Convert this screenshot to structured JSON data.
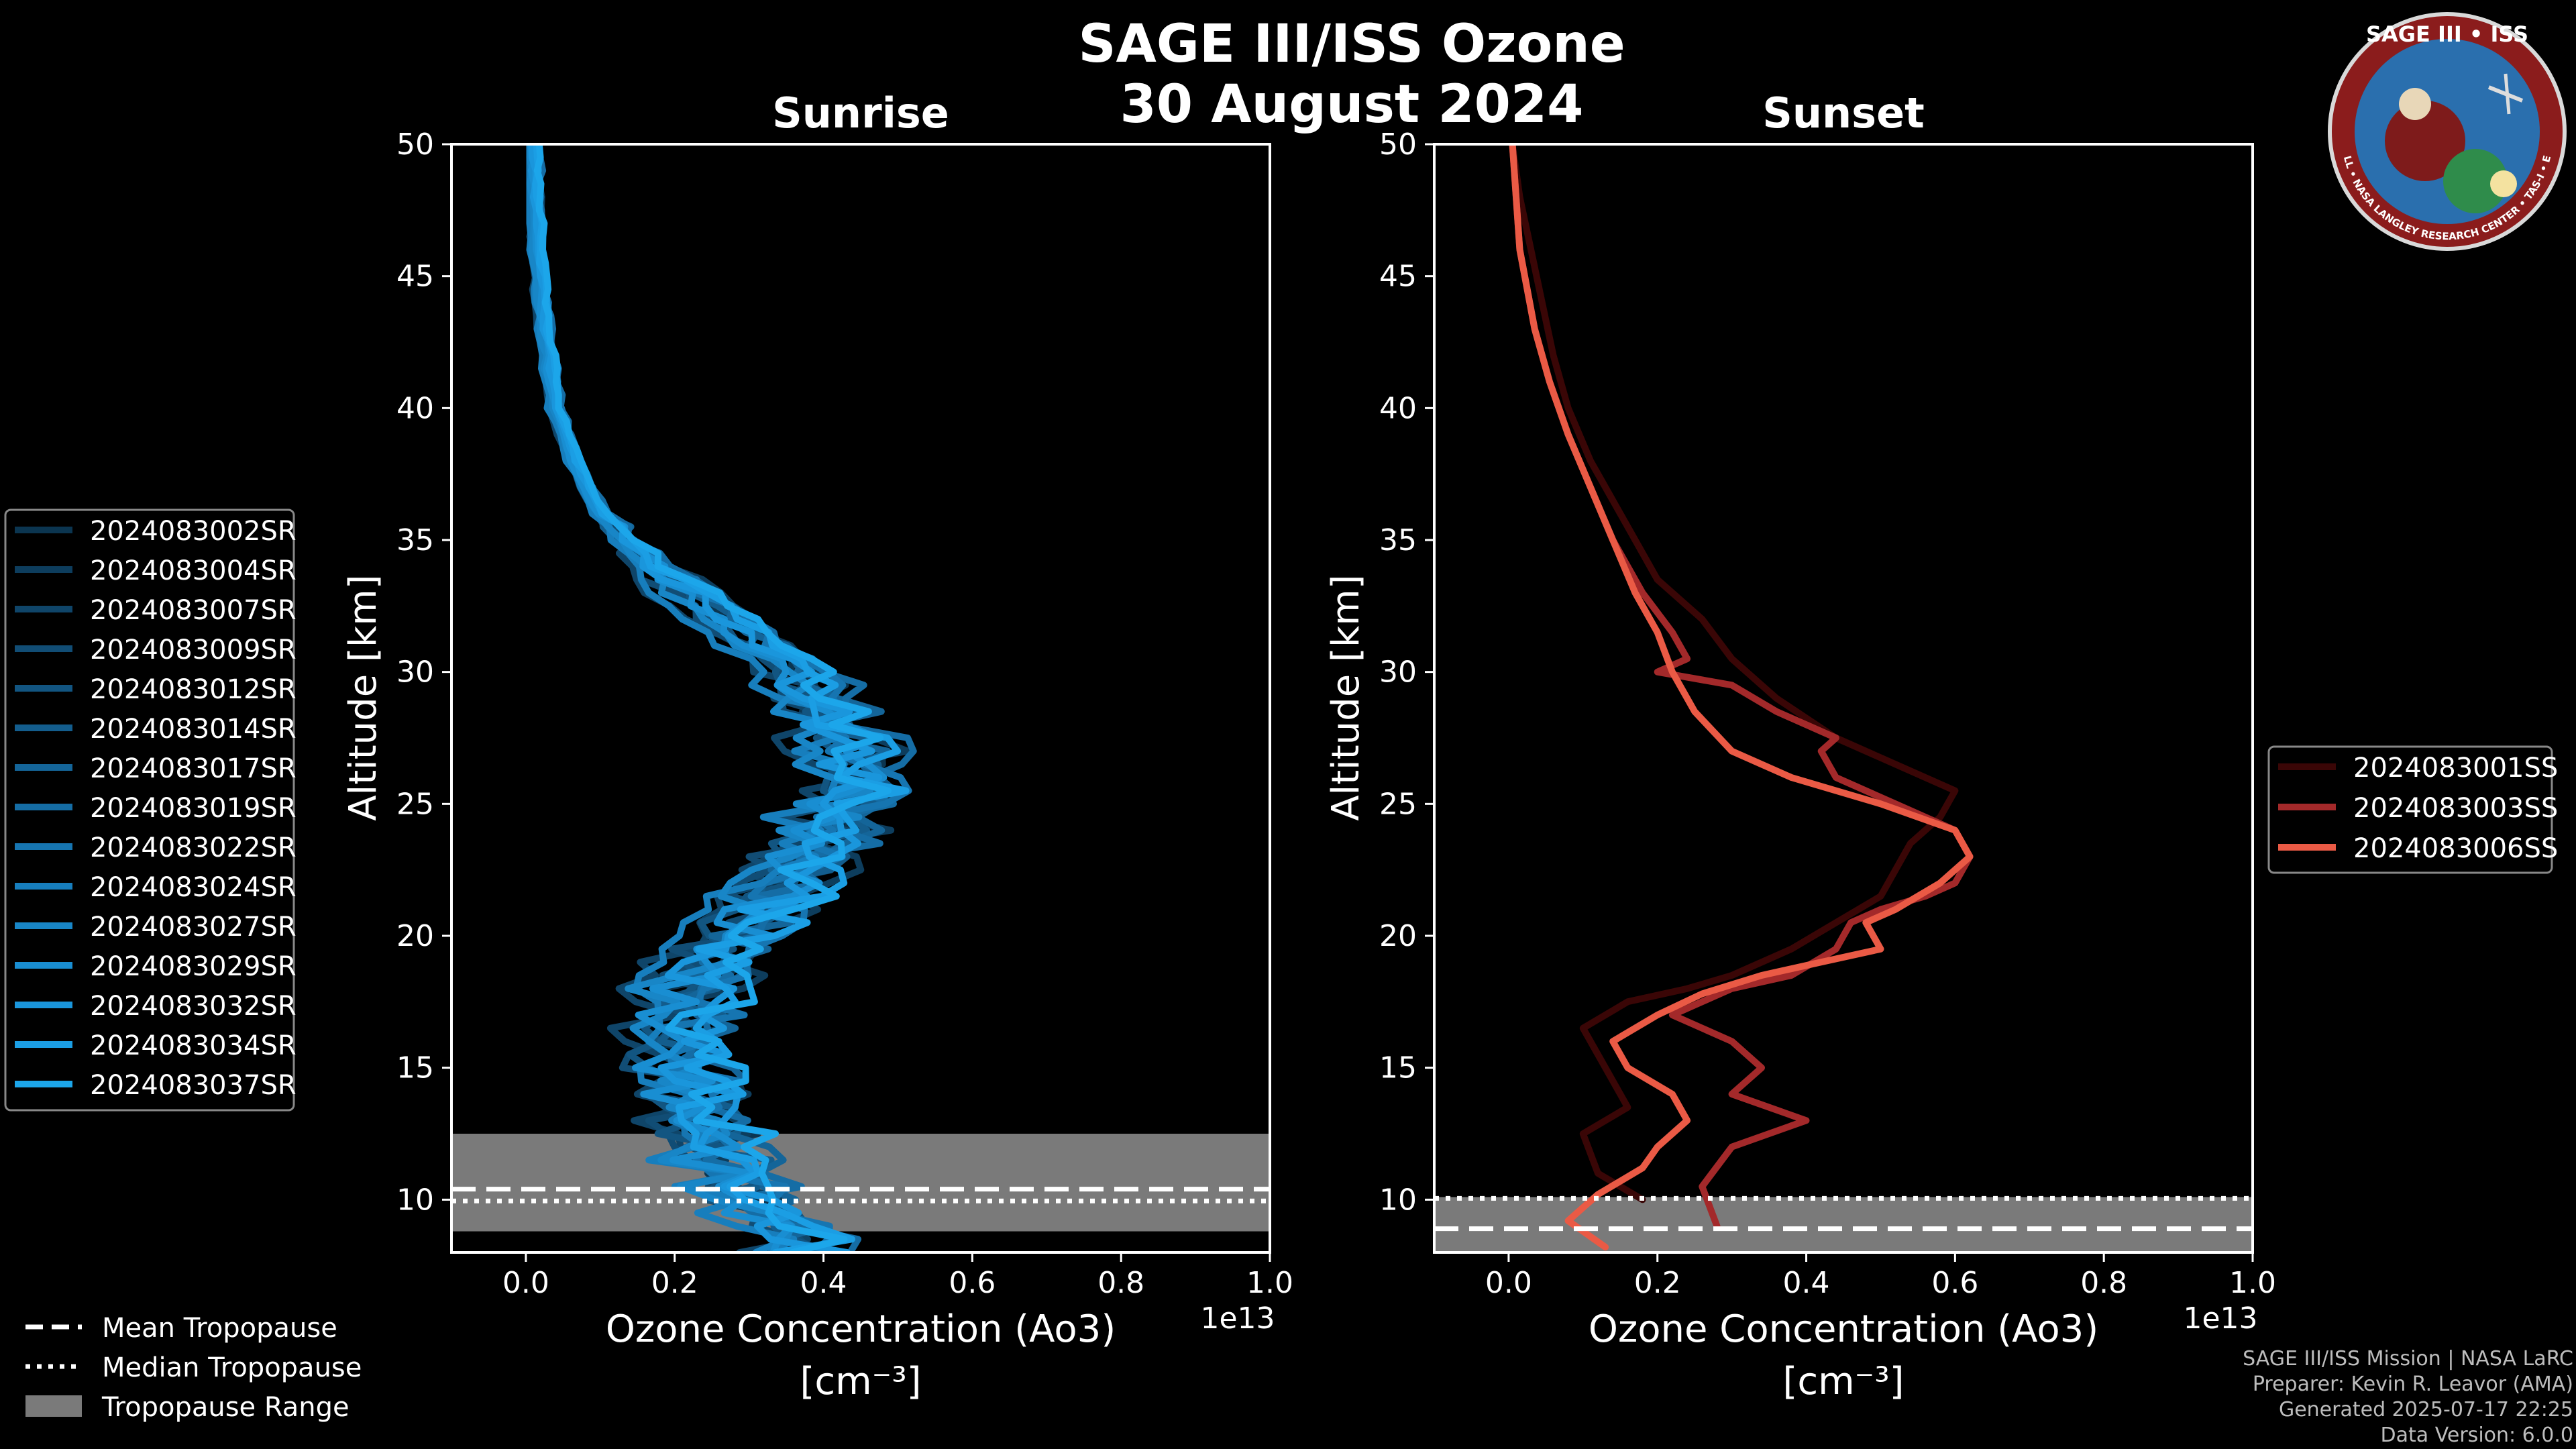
{
  "title": "SAGE III/ISS Ozone",
  "date": "30 August 2024",
  "logo": {
    "text": "SAGE III • ISS",
    "ring_text": "BALL • NASA LANGLEY RESEARCH CENTER • TAS-I • ESA",
    "colors": {
      "ring": "#8b1c1c",
      "inner": "#2a6fae"
    }
  },
  "chart_data": [
    {
      "type": "line",
      "title": "Sunrise",
      "xlabel": "Ozone Concentration (Ao3)",
      "xunit": "[cm⁻³]",
      "xscale": "1e13",
      "ylabel": "Altitude [km]",
      "xlim": [
        -0.1,
        1.0
      ],
      "ylim": [
        8,
        50
      ],
      "xticks": [
        "0.0",
        "0.2",
        "0.4",
        "0.6",
        "0.8",
        "1.0"
      ],
      "yticks": [
        "10",
        "15",
        "20",
        "25",
        "30",
        "35",
        "40",
        "45",
        "50"
      ],
      "tropopause": {
        "mean": 10.4,
        "median": 9.95,
        "range": [
          8.8,
          12.5
        ]
      },
      "legend_position": "left",
      "series": [
        {
          "name": "2024083002SR",
          "color": "#0b3550",
          "seed": 1
        },
        {
          "name": "2024083004SR",
          "color": "#0d3d5d",
          "seed": 2
        },
        {
          "name": "2024083007SR",
          "color": "#0f4569",
          "seed": 3
        },
        {
          "name": "2024083009SR",
          "color": "#114d75",
          "seed": 4
        },
        {
          "name": "2024083012SR",
          "color": "#125581",
          "seed": 5
        },
        {
          "name": "2024083014SR",
          "color": "#135d8d",
          "seed": 6
        },
        {
          "name": "2024083017SR",
          "color": "#146599",
          "seed": 7
        },
        {
          "name": "2024083019SR",
          "color": "#156da5",
          "seed": 8
        },
        {
          "name": "2024083022SR",
          "color": "#1675b1",
          "seed": 9
        },
        {
          "name": "2024083024SR",
          "color": "#177ebd",
          "seed": 10
        },
        {
          "name": "2024083027SR",
          "color": "#1886c7",
          "seed": 11
        },
        {
          "name": "2024083029SR",
          "color": "#198ed2",
          "seed": 12
        },
        {
          "name": "2024083032SR",
          "color": "#1a96dc",
          "seed": 13
        },
        {
          "name": "2024083034SR",
          "color": "#1b9ee4",
          "seed": 14
        },
        {
          "name": "2024083037SR",
          "color": "#1ca6ea",
          "seed": 15
        }
      ],
      "profile_x": [
        0.37,
        0.3,
        0.25,
        0.22,
        0.2,
        0.22,
        0.28,
        0.35,
        0.41,
        0.44,
        0.42,
        0.36,
        0.26,
        0.17,
        0.1,
        0.065,
        0.04,
        0.025,
        0.015,
        0.01
      ],
      "profile_alt": [
        8.5,
        10,
        12,
        14,
        16,
        18,
        20,
        22,
        24,
        26,
        28,
        30,
        32,
        34,
        36,
        38,
        40,
        43,
        46,
        50
      ]
    },
    {
      "type": "line",
      "title": "Sunset",
      "xlabel": "Ozone Concentration (Ao3)",
      "xunit": "[cm⁻³]",
      "xscale": "1e13",
      "ylabel": "Altitude [km]",
      "xlim": [
        -0.1,
        1.0
      ],
      "ylim": [
        8,
        50
      ],
      "xticks": [
        "0.0",
        "0.2",
        "0.4",
        "0.6",
        "0.8",
        "1.0"
      ],
      "yticks": [
        "10",
        "15",
        "20",
        "25",
        "30",
        "35",
        "40",
        "45",
        "50"
      ],
      "tropopause": {
        "mean": 8.9,
        "median": 10.05,
        "range": [
          8.0,
          10.1
        ]
      },
      "legend_position": "right",
      "series": [
        {
          "name": "2024083001SS",
          "color": "#3a0606",
          "x": [
            0.18,
            0.12,
            0.1,
            0.16,
            0.14,
            0.12,
            0.1,
            0.16,
            0.24,
            0.3,
            0.38,
            0.44,
            0.5,
            0.52,
            0.54,
            0.58,
            0.6,
            0.52,
            0.44,
            0.36,
            0.3,
            0.26,
            0.2,
            0.17,
            0.14,
            0.11,
            0.08,
            0.06,
            0.045,
            0.03,
            0.015,
            0.005
          ],
          "alt": [
            10,
            11,
            12.5,
            13.5,
            14.5,
            15.5,
            16.5,
            17.5,
            18,
            18.5,
            19.5,
            20.5,
            21.5,
            22.5,
            23.5,
            24.5,
            25.5,
            26.5,
            27.5,
            29,
            30.5,
            32,
            33.5,
            35,
            36.5,
            38,
            40,
            42,
            44,
            46,
            48,
            50
          ]
        },
        {
          "name": "2024083003SS",
          "color": "#a3292a",
          "x": [
            0.28,
            0.26,
            0.3,
            0.4,
            0.3,
            0.34,
            0.3,
            0.22,
            0.3,
            0.38,
            0.44,
            0.46,
            0.5,
            0.56,
            0.6,
            0.62,
            0.6,
            0.52,
            0.44,
            0.42,
            0.44,
            0.36,
            0.3,
            0.2,
            0.24,
            0.22,
            0.18,
            0.14,
            0.11,
            0.08,
            0.055,
            0.035,
            0.015,
            0.005
          ],
          "alt": [
            9,
            10.5,
            12,
            13,
            14,
            15,
            16,
            17,
            18,
            18.5,
            19.5,
            20.5,
            21,
            21.5,
            22,
            23,
            24,
            25,
            26,
            27,
            27.5,
            28.5,
            29.5,
            30,
            30.5,
            31.5,
            33,
            35,
            37,
            39,
            41,
            43,
            46,
            50
          ]
        },
        {
          "name": "2024083006SS",
          "color": "#ea5a45",
          "x": [
            0.13,
            0.08,
            0.12,
            0.18,
            0.2,
            0.24,
            0.22,
            0.16,
            0.14,
            0.2,
            0.26,
            0.34,
            0.42,
            0.5,
            0.48,
            0.52,
            0.58,
            0.62,
            0.6,
            0.5,
            0.38,
            0.3,
            0.25,
            0.22,
            0.2,
            0.17,
            0.14,
            0.11,
            0.08,
            0.055,
            0.035,
            0.015,
            0.005
          ],
          "alt": [
            8.2,
            9.2,
            10.2,
            11.2,
            12,
            13,
            14,
            15,
            16,
            17,
            17.8,
            18.5,
            19,
            19.5,
            20.5,
            21,
            22,
            23,
            24,
            25,
            26,
            27,
            28.5,
            30,
            31.5,
            33,
            35,
            37,
            39,
            41,
            43,
            46,
            50
          ]
        }
      ]
    }
  ],
  "tropopause_legend": {
    "mean": "Mean Tropopause",
    "median": "Median Tropopause",
    "range": "Tropopause Range"
  },
  "footer": {
    "line1": "SAGE III/ISS Mission | NASA LaRC",
    "line2": "Preparer: Kevin R. Leavor (AMA)",
    "line3": "Generated 2025-07-17 22:25",
    "line4": "Data Version: 6.0.0"
  }
}
